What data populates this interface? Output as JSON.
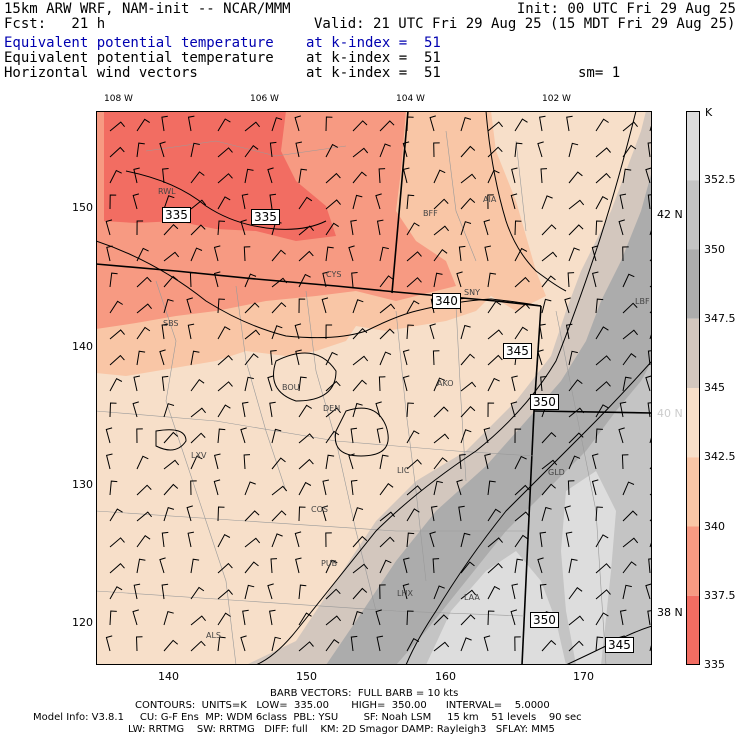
{
  "header": {
    "model": "15km ARW WRF, NAM-init -- NCAR/MMM",
    "init": "Init: 00 UTC Fri 29 Aug 25",
    "fcst": "Fcst:   21 h",
    "valid": "Valid: 21 UTC Fri 29 Aug 25 (15 MDT Fri 29 Aug 25)",
    "fields": [
      {
        "name": "Equivalent potential temperature",
        "level": "at k-index =  51",
        "color": "#0000b0"
      },
      {
        "name": "Equivalent potential temperature",
        "level": "at k-index =  51",
        "color": "#000000"
      },
      {
        "name": "Horizontal wind vectors",
        "level": "at k-index =  51",
        "color": "#000000"
      }
    ],
    "smooth": "sm= 1"
  },
  "axes": {
    "top_lon": [
      "108 W",
      "106 W",
      "104 W",
      "102 W"
    ],
    "x_ticks": [
      "140",
      "150",
      "160",
      "170"
    ],
    "y_ticks": [
      "150",
      "140",
      "130",
      "120"
    ],
    "lat_labels": [
      "42 N",
      "40 N",
      "38 N"
    ]
  },
  "colorbar": {
    "unit": "K",
    "labels": [
      "352.5",
      "350",
      "347.5",
      "345",
      "342.5",
      "340",
      "337.5",
      "335"
    ],
    "colors": [
      "#dddddd",
      "#c4c4c4",
      "#acacac",
      "#d3c7be",
      "#f7dfc9",
      "#f9c6a6",
      "#f79a82",
      "#f26d62"
    ]
  },
  "stations": [
    "RWL",
    "BFF",
    "AIA",
    "CYS",
    "SNY",
    "LBF",
    "SBS",
    "BOU",
    "DEN",
    "AKO",
    "LXV",
    "LIC",
    "GLD",
    "COS",
    "PUB",
    "LHX",
    "LAA",
    "ALS"
  ],
  "contour_labels": [
    "335",
    "335",
    "340",
    "345",
    "350",
    "350",
    "345"
  ],
  "footer": {
    "barb": "BARB VECTORS:  FULL BARB = 10 kts",
    "contours": "CONTOURS:  UNITS=K   LOW=  335.00       HIGH=  350.00      INTERVAL=    5.0000",
    "model_info": "Model Info: V3.8.1     CU: G-F Ens  MP: WDM 6class  PBL: YSU        SF: Noah LSM     15 km    51 levels    90 sec",
    "physics": "LW: RRTMG    SW: RRTMG   DIFF: full    KM: 2D Smagor DAMP: Rayleigh3   SFLAY: MM5"
  }
}
